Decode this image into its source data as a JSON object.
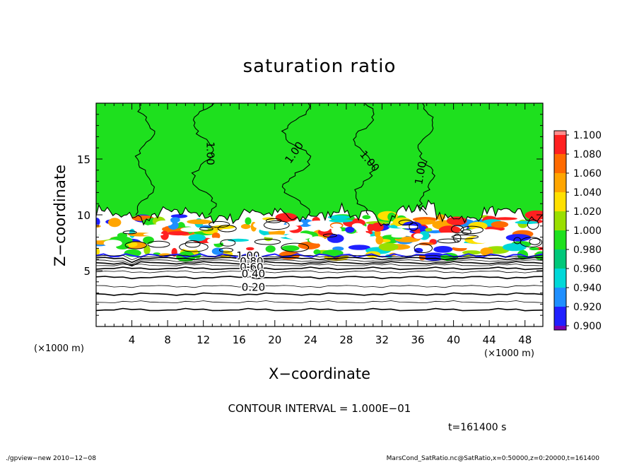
{
  "chart_data": {
    "type": "heatmap",
    "title": "saturation ratio",
    "xlabel": "X−coordinate",
    "ylabel": "Z−coordinate",
    "x_unit": "(×1000 m)",
    "y_unit": "(×1000 m)",
    "xlim": [
      0,
      50
    ],
    "ylim": [
      0,
      20
    ],
    "x_ticks": [
      4,
      8,
      12,
      16,
      20,
      24,
      28,
      32,
      36,
      40,
      44,
      48
    ],
    "y_ticks": [
      5,
      10,
      15
    ],
    "contour_interval_text": "CONTOUR INTERVAL = 1.000E−01",
    "time_text": "t=161400 s",
    "colorbar": {
      "labels": [
        "1.100",
        "1.080",
        "1.060",
        "1.040",
        "1.020",
        "1.000",
        "0.980",
        "0.960",
        "0.940",
        "0.920",
        "0.900"
      ],
      "colors": [
        "#ff8c8c",
        "#ff2020",
        "#ff6a00",
        "#ffa500",
        "#ffe000",
        "#9adf00",
        "#1ee01e",
        "#00c87a",
        "#00d8d8",
        "#1f8fff",
        "#2020ff",
        "#0000a0",
        "#7a00b0"
      ],
      "upper_color": "#ff8c8c",
      "lower_color": "#7a00b0"
    },
    "contour_labels": [
      {
        "text": "1.00",
        "x": 12.4,
        "z": 15.5,
        "rotate": 90
      },
      {
        "text": "1.00",
        "x": 22.5,
        "z": 15.4,
        "rotate": -55
      },
      {
        "text": "1.00",
        "x": 30.3,
        "z": 14.6,
        "rotate": 50
      },
      {
        "text": "1.00",
        "x": 36.7,
        "z": 13.7,
        "rotate": -80
      },
      {
        "text": "1.00",
        "x": 17.0,
        "z": 6.0,
        "rotate": 0
      },
      {
        "text": "0.80",
        "x": 17.4,
        "z": 5.5,
        "rotate": 0
      },
      {
        "text": "0.60",
        "x": 17.4,
        "z": 5.0,
        "rotate": 0
      },
      {
        "text": "0.40",
        "x": 17.6,
        "z": 4.4,
        "rotate": 0
      },
      {
        "text": "0.20",
        "x": 17.6,
        "z": 3.2,
        "rotate": 0
      }
    ],
    "cloud_layer_z": [
      6.0,
      10.0
    ],
    "lower_contour_z": [
      6.3,
      6.1,
      5.9,
      5.7,
      5.5,
      5.2,
      4.9,
      4.4,
      3.6,
      2.9,
      2.2,
      1.5
    ]
  },
  "footer": {
    "left": "./gpview−new   2010−12−08",
    "right": "MarsCond_SatRatio.nc@SatRatio,x=0:50000,z=0:20000,t=161400"
  }
}
